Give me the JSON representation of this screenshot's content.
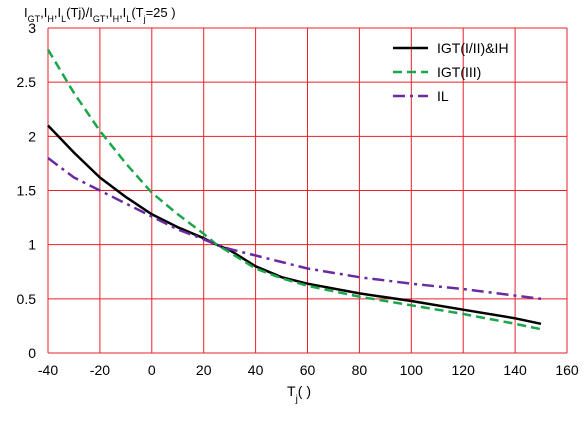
{
  "chart_data": {
    "type": "line",
    "xlabel_main": "T",
    "xlabel_sub": "j",
    "xlabel_suffix": "(   )",
    "ylabel_parts": [
      {
        "t": "I",
        "sub": false
      },
      {
        "t": "GT",
        "sub": true
      },
      {
        "t": ",I",
        "sub": false
      },
      {
        "t": "H",
        "sub": true
      },
      {
        "t": ",I",
        "sub": false
      },
      {
        "t": "L",
        "sub": true
      },
      {
        "t": "(Tj)/I",
        "sub": false
      },
      {
        "t": "GT",
        "sub": true
      },
      {
        "t": ",I",
        "sub": false
      },
      {
        "t": "H",
        "sub": true
      },
      {
        "t": ",I",
        "sub": false
      },
      {
        "t": "L",
        "sub": true
      },
      {
        "t": "(T",
        "sub": false
      },
      {
        "t": "j",
        "sub": true
      },
      {
        "t": "=25   )",
        "sub": false
      }
    ],
    "xlim": [
      -40,
      160
    ],
    "ylim": [
      0,
      3
    ],
    "x_ticks": [
      -40,
      -20,
      0,
      20,
      40,
      60,
      80,
      100,
      120,
      140,
      160
    ],
    "y_ticks": [
      0,
      0.5,
      1,
      1.5,
      2,
      2.5,
      3
    ],
    "y_tick_labels": [
      "0",
      "0.5",
      "1",
      "1.5",
      "2",
      "2.5",
      "3"
    ],
    "grid": true,
    "grid_color": "#e8202a",
    "legend_position": "top-right",
    "series": [
      {
        "name": "IGT(I/II)&IH",
        "color": "#000000",
        "dash": "solid",
        "x": [
          -40,
          -30,
          -20,
          -10,
          0,
          10,
          20,
          25,
          30,
          40,
          50,
          60,
          80,
          100,
          120,
          140,
          150
        ],
        "y": [
          2.1,
          1.85,
          1.62,
          1.44,
          1.28,
          1.16,
          1.06,
          1.0,
          0.95,
          0.8,
          0.7,
          0.64,
          0.55,
          0.48,
          0.4,
          0.32,
          0.27
        ]
      },
      {
        "name": "IGT(III)",
        "color": "#1aa64a",
        "dash": "dashed",
        "x": [
          -40,
          -30,
          -20,
          -10,
          0,
          10,
          20,
          25,
          30,
          40,
          50,
          60,
          80,
          100,
          120,
          140,
          150
        ],
        "y": [
          2.8,
          2.4,
          2.05,
          1.75,
          1.48,
          1.28,
          1.1,
          1.0,
          0.93,
          0.78,
          0.69,
          0.62,
          0.52,
          0.44,
          0.36,
          0.27,
          0.22
        ]
      },
      {
        "name": "IL",
        "color": "#6a2aa0",
        "dash": "dashdot",
        "x": [
          -40,
          -30,
          -20,
          -10,
          0,
          10,
          20,
          25,
          30,
          40,
          50,
          60,
          80,
          100,
          120,
          140,
          150
        ],
        "y": [
          1.8,
          1.62,
          1.5,
          1.38,
          1.26,
          1.14,
          1.05,
          1.0,
          0.96,
          0.9,
          0.84,
          0.78,
          0.7,
          0.64,
          0.59,
          0.53,
          0.5
        ]
      }
    ]
  }
}
